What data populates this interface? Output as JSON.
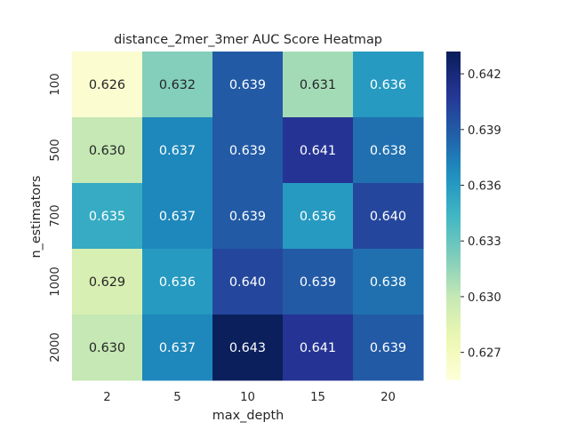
{
  "chart_data": {
    "type": "heatmap",
    "title": "distance_2mer_3mer AUC Score Heatmap",
    "xlabel": "max_depth",
    "ylabel": "n_estimators",
    "x_categories": [
      "2",
      "5",
      "10",
      "15",
      "20"
    ],
    "y_categories": [
      "100",
      "500",
      "700",
      "1000",
      "2000"
    ],
    "values": [
      [
        0.626,
        0.632,
        0.639,
        0.631,
        0.636
      ],
      [
        0.63,
        0.637,
        0.639,
        0.641,
        0.638
      ],
      [
        0.635,
        0.637,
        0.639,
        0.636,
        0.64
      ],
      [
        0.629,
        0.636,
        0.64,
        0.639,
        0.638
      ],
      [
        0.63,
        0.637,
        0.643,
        0.641,
        0.639
      ]
    ],
    "value_labels": [
      [
        "0.626",
        "0.632",
        "0.639",
        "0.631",
        "0.636"
      ],
      [
        "0.630",
        "0.637",
        "0.639",
        "0.641",
        "0.638"
      ],
      [
        "0.635",
        "0.637",
        "0.639",
        "0.636",
        "0.640"
      ],
      [
        "0.629",
        "0.636",
        "0.640",
        "0.639",
        "0.638"
      ],
      [
        "0.630",
        "0.637",
        "0.643",
        "0.641",
        "0.639"
      ]
    ],
    "colormap": "YlGnBu",
    "vmin": 0.6255,
    "vmax": 0.6432,
    "colorbar_ticks": [
      0.627,
      0.63,
      0.633,
      0.636,
      0.639,
      0.642
    ],
    "colorbar_tick_labels": [
      "0.627",
      "0.630",
      "0.633",
      "0.636",
      "0.639",
      "0.642"
    ],
    "grid": false
  }
}
